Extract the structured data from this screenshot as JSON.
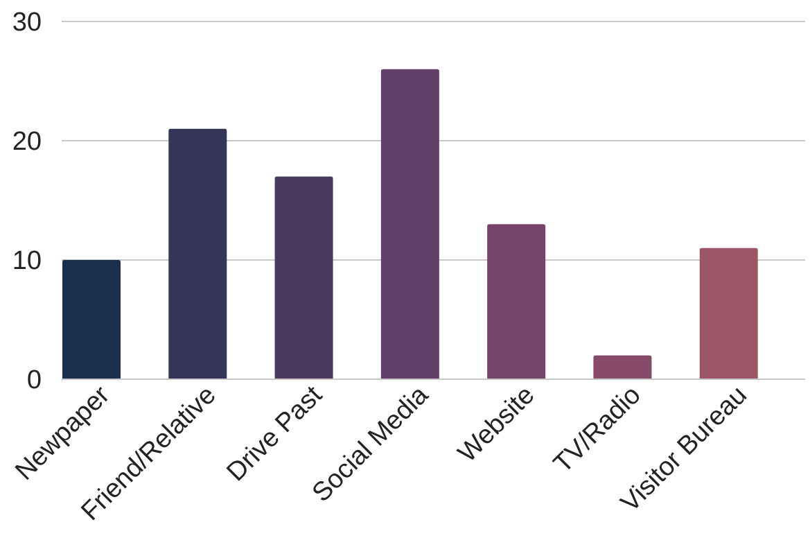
{
  "chart_data": {
    "type": "bar",
    "categories": [
      "Newpaper",
      "Friend/Relative",
      "Drive Past",
      "Social Media",
      "Website",
      "TV/Radio",
      "Visitor Bureau"
    ],
    "values": [
      10,
      21,
      17,
      26,
      13,
      2,
      11
    ],
    "bar_colors": [
      "#1d2f4f",
      "#35355a",
      "#4a3a5f",
      "#623f68",
      "#764468",
      "#874a69",
      "#9b5768"
    ],
    "ylim": [
      0,
      30
    ],
    "yticks": [
      0,
      10,
      20,
      30
    ],
    "ytick_labels": [
      "0",
      "10",
      "20",
      "30"
    ],
    "grid": true,
    "legend": "none",
    "title": "",
    "xlabel": "",
    "ylabel": ""
  }
}
